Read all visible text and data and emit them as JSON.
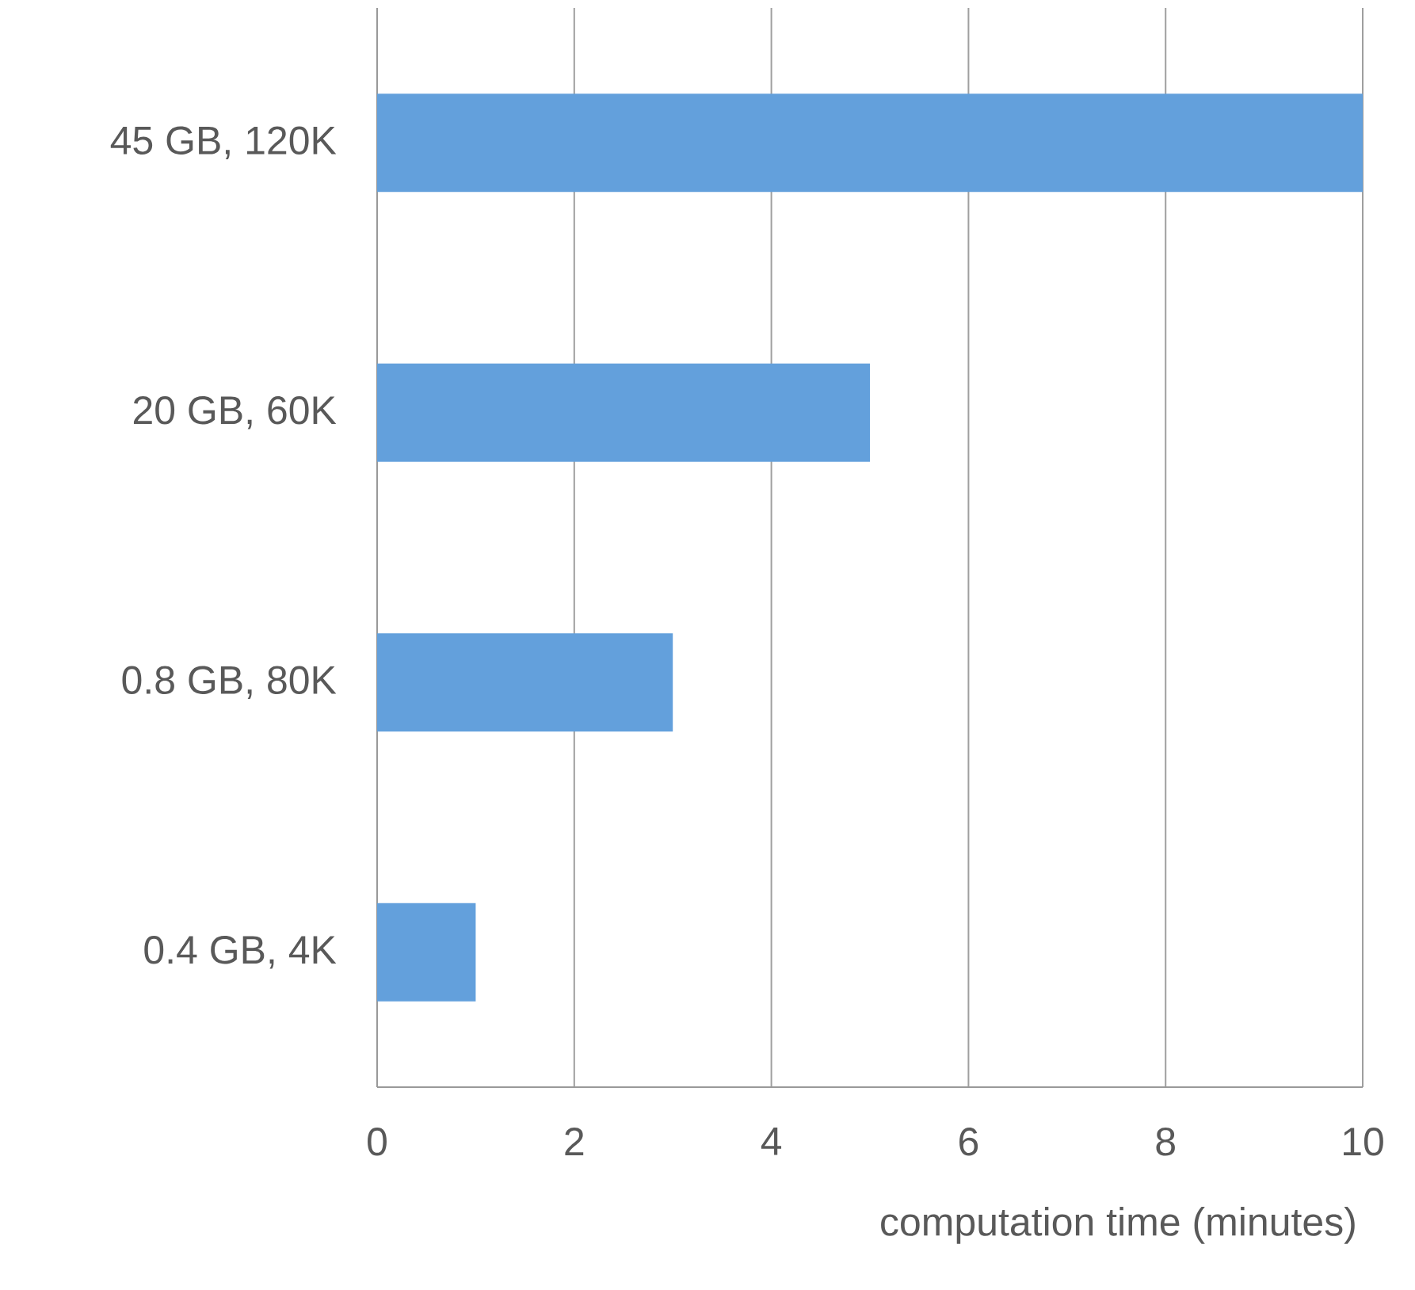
{
  "chart_data": {
    "type": "bar",
    "orientation": "horizontal",
    "xlabel": "computation time (minutes)",
    "categories": [
      "45 GB, 120K",
      "20 GB, 60K",
      "0.8 GB, 80K",
      "0.4 GB, 4K"
    ],
    "values": [
      10,
      5,
      3,
      1
    ],
    "color": "#63a0dc",
    "xlim": [
      0,
      10
    ],
    "xticks": [
      0,
      2,
      4,
      6,
      8,
      10
    ],
    "grid": "x"
  }
}
